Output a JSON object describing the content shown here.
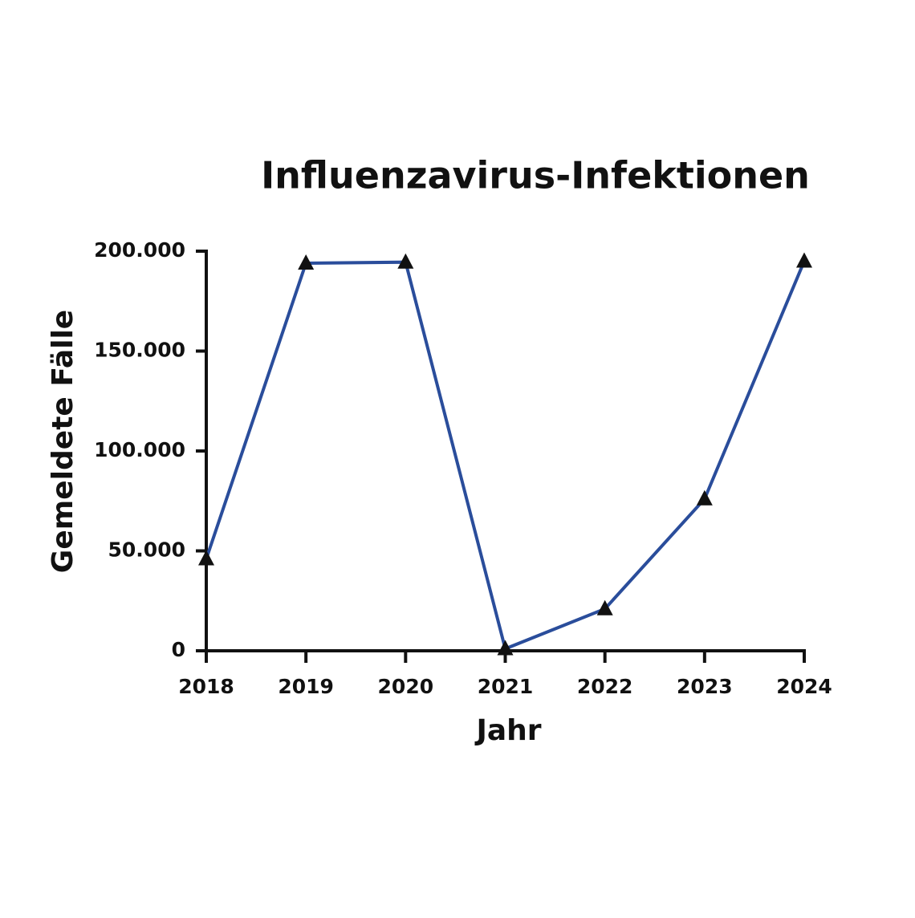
{
  "chart_data": {
    "type": "line",
    "title": "Influenzavirus-Infektionen",
    "x_label": "Jahr",
    "y_label": "Gemeldete Fälle",
    "categories": [
      "2018",
      "2019",
      "2020",
      "2021",
      "2022",
      "2023",
      "2024"
    ],
    "series": [
      {
        "name": "Fälle",
        "color": "#2a4d9b",
        "values": [
          46000,
          194000,
          194500,
          1000,
          21000,
          76000,
          195000
        ]
      }
    ],
    "ylim": [
      0,
      200000
    ],
    "yticks": [
      0,
      {
        "value": 50000,
        "label": "50.000"
      },
      {
        "value": 100000,
        "label": "100.000"
      },
      {
        "value": 150000,
        "label": "150.000"
      },
      {
        "value": 200000,
        "label": "200.000"
      }
    ]
  }
}
